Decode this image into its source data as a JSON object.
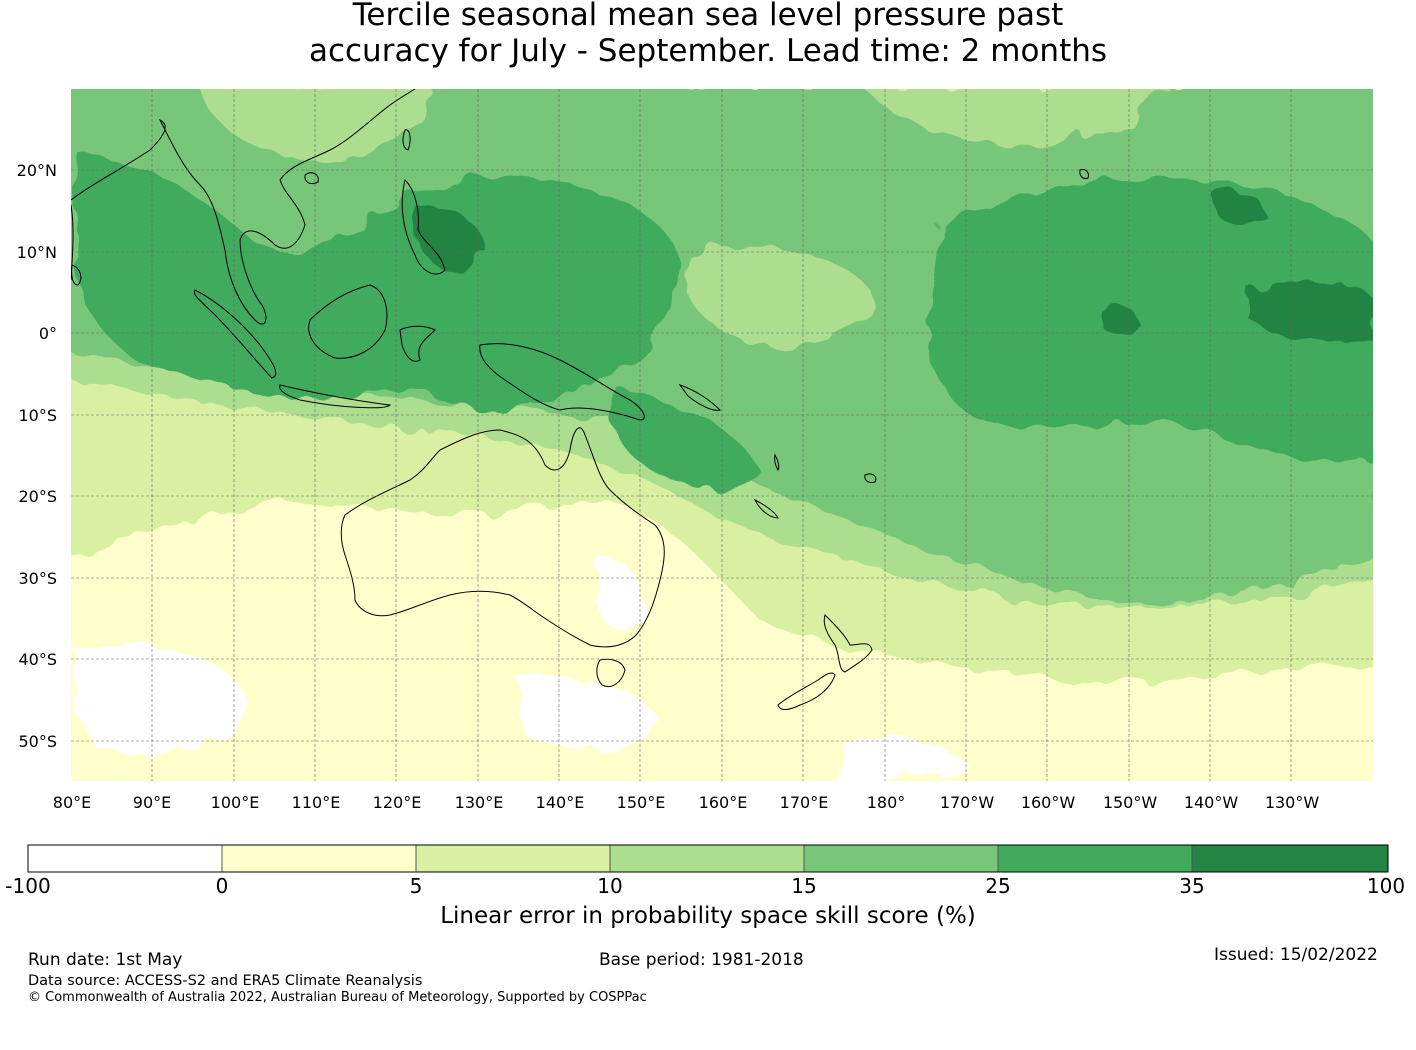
{
  "title": {
    "line1": "Tercile seasonal mean sea level pressure past",
    "line2": "accuracy for July - September. Lead time: 2 months"
  },
  "map": {
    "lat_labels": [
      "20°N",
      "10°N",
      "0°",
      "10°S",
      "20°S",
      "30°S",
      "40°S",
      "50°S"
    ],
    "lon_labels": [
      "80°E",
      "90°E",
      "100°E",
      "110°E",
      "120°E",
      "130°E",
      "140°E",
      "150°E",
      "160°E",
      "170°E",
      "180°",
      "170°W",
      "160°W",
      "150°W",
      "140°W",
      "130°W"
    ],
    "region": "Indo-Pacific",
    "extent": {
      "lon_min": 80,
      "lon_max": 240,
      "lat_min": -55,
      "lat_max": 30
    }
  },
  "colorbar": {
    "ticks": [
      "-100",
      "0",
      "5",
      "10",
      "15",
      "25",
      "35",
      "100"
    ],
    "colors": [
      "#ffffff",
      "#ffffcc",
      "#d9f0a3",
      "#addd8e",
      "#78c679",
      "#41ab5d",
      "#238443"
    ],
    "label": "Linear error in probability space skill score (%)"
  },
  "footer": {
    "run_date": "Run date: 1st May",
    "base_period": "Base period: 1981-2018",
    "issued": "Issued: 15/02/2022",
    "data_source": "Data source: ACCESS-S2 and ERA5 Climate Reanalysis",
    "copyright": "© Commonwealth of Australia 2022, Australian Bureau of Meteorology, Supported by COSPPac"
  }
}
